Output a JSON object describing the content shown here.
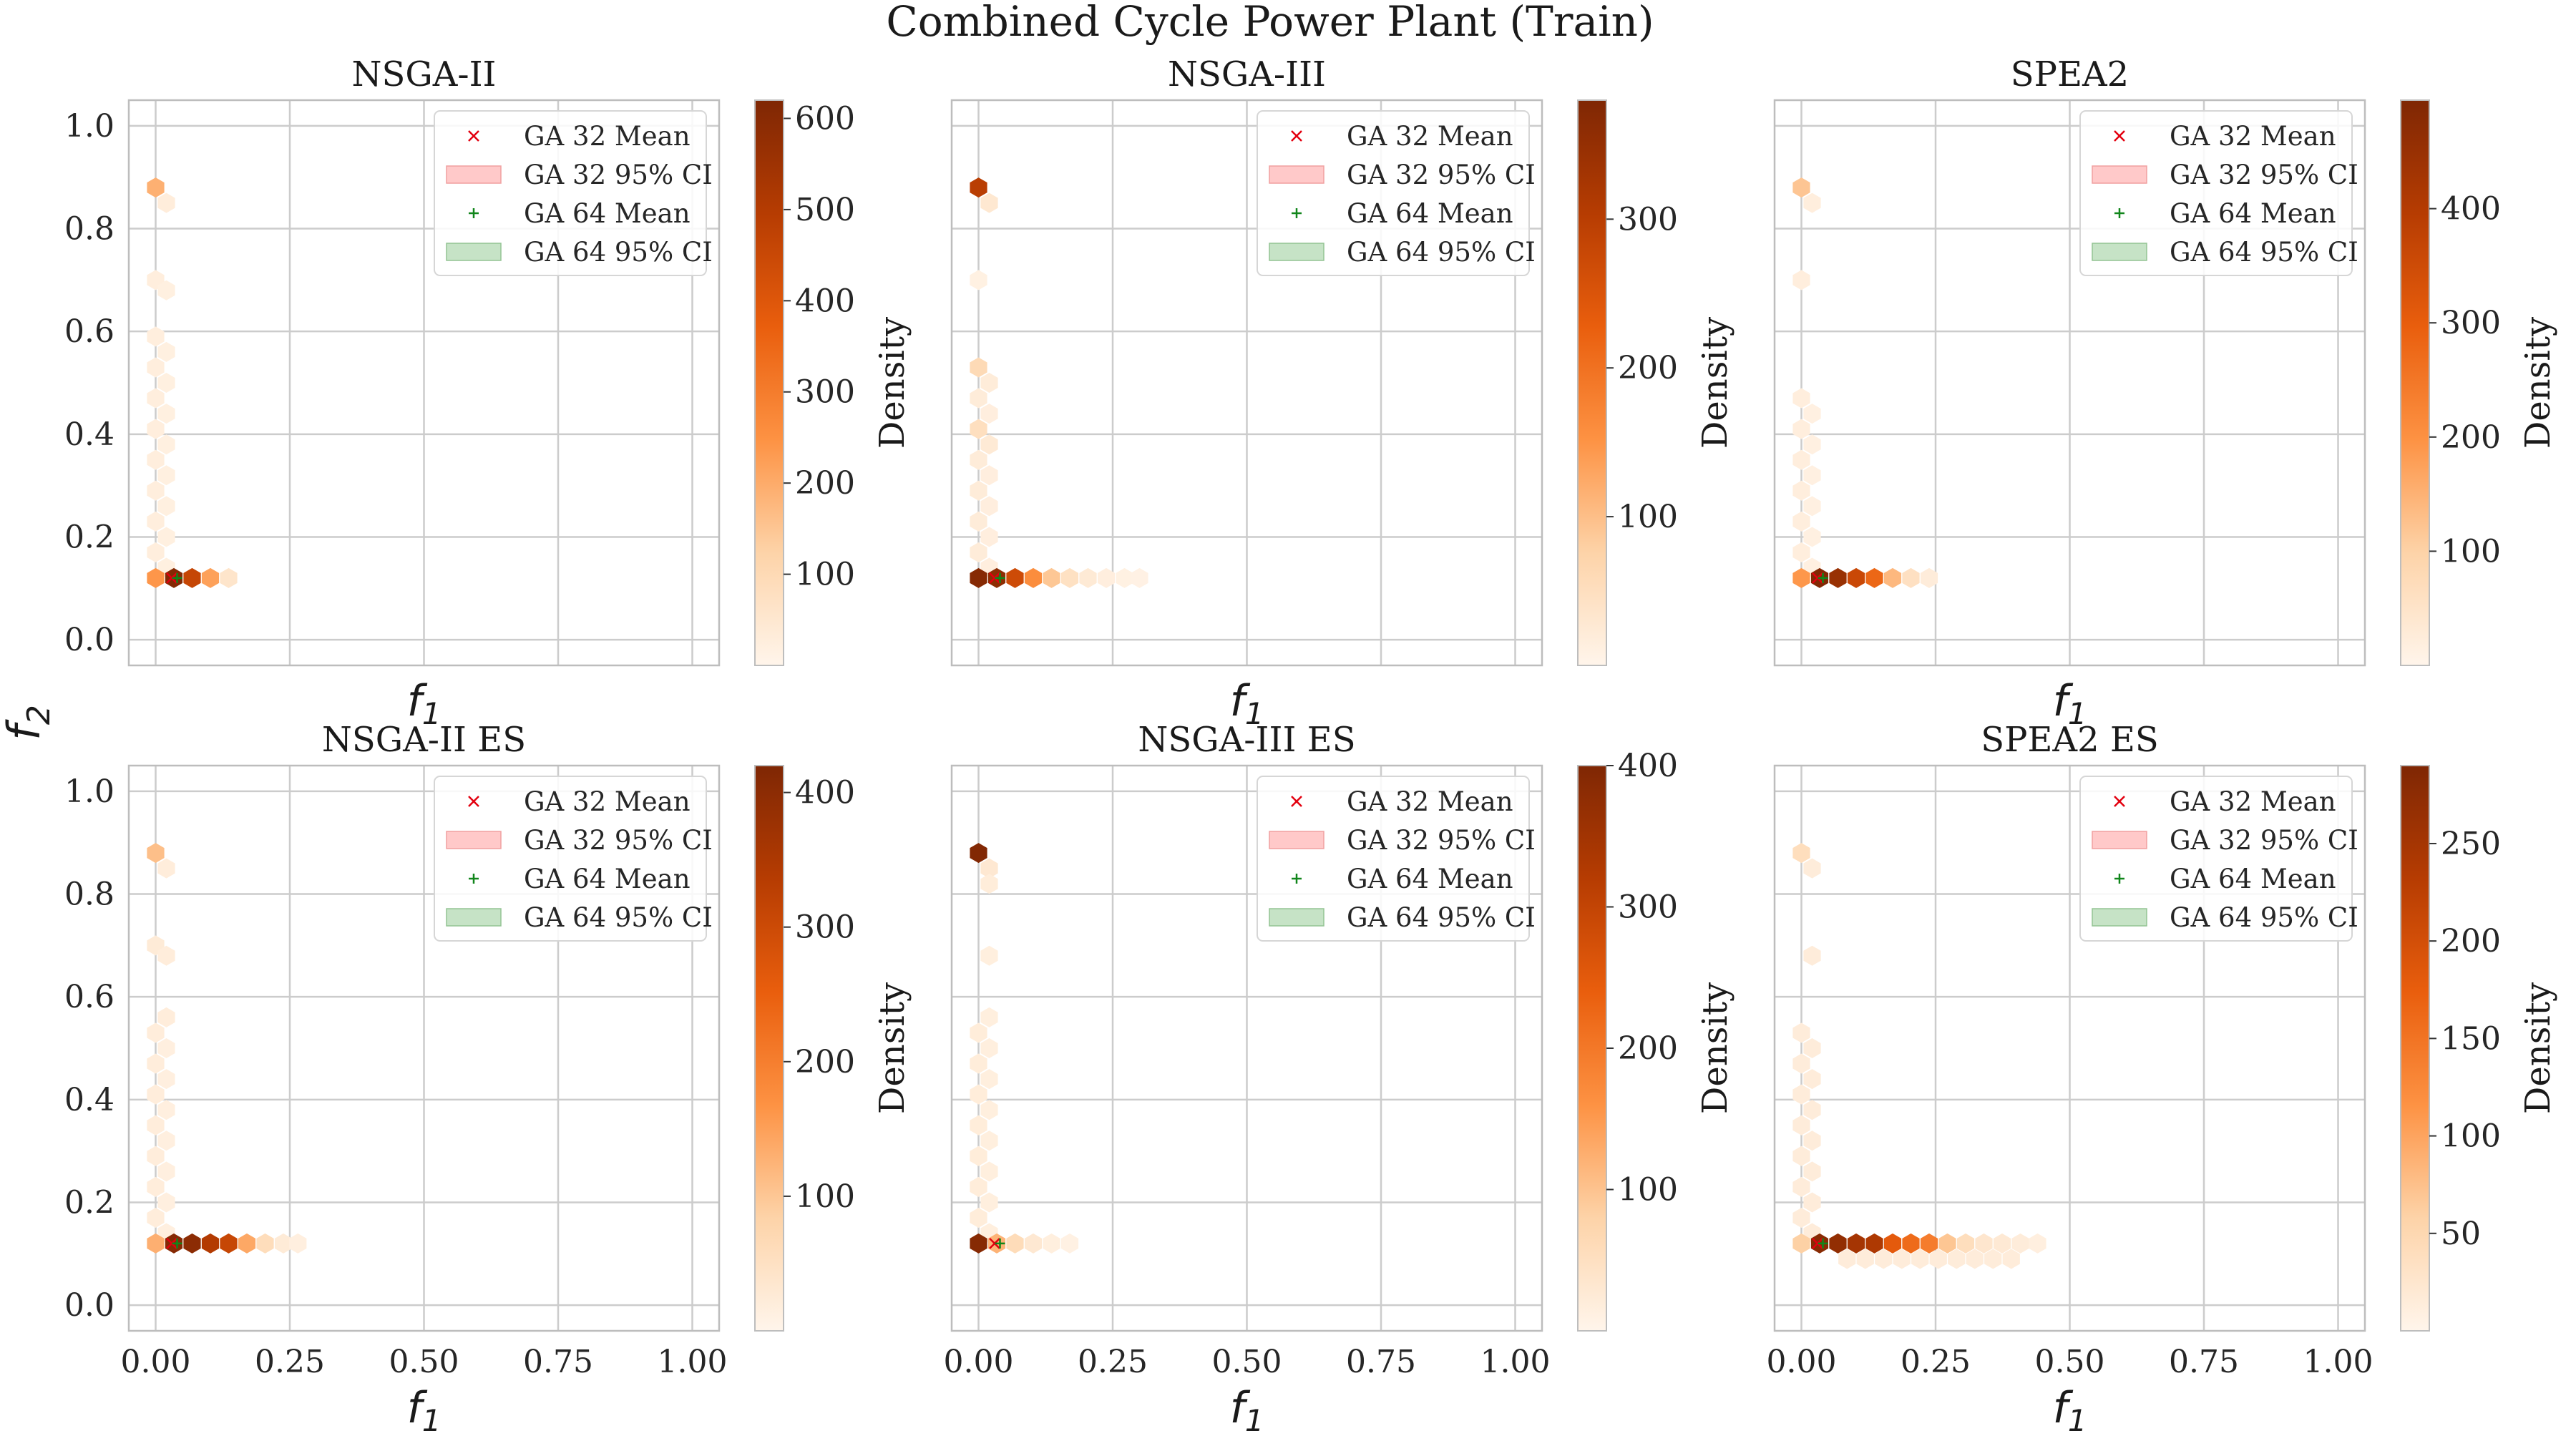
{
  "figure": {
    "title": "Combined Cycle Power Plant (Train)",
    "ylabel_main": "f",
    "ylabel_sub": "2"
  },
  "colors": {
    "gradient": [
      "#fff5eb",
      "#fdd3a8",
      "#fd9243",
      "#e95e0d",
      "#b63c02",
      "#7f2704"
    ],
    "grid": "#cccccc",
    "frame": "#bdbdbd",
    "ga32_mean": "#e3000f",
    "ga32_ci_fill": "#ffc9c9",
    "ga32_ci_edge": "#f0a0a0",
    "ga64_mean": "#11861b",
    "ga64_ci_fill": "#c6e3c6",
    "ga64_ci_edge": "#93c493"
  },
  "legend": {
    "ga32_mean": "GA 32 Mean",
    "ga32_ci": "GA 32 95% CI",
    "ga64_mean": "GA 64 Mean",
    "ga64_ci": "GA 64 95% CI"
  },
  "chart_data": [
    {
      "type": "hexbin",
      "title": "NSGA-II",
      "xlabel": "f",
      "xlabel_sub": "1",
      "xlim": [
        -0.05,
        1.05
      ],
      "ylim": [
        -0.05,
        1.05
      ],
      "xticks": [],
      "yticks": [
        "0.0",
        "0.2",
        "0.4",
        "0.6",
        "0.8",
        "1.0"
      ],
      "colorbar": {
        "label": "Density",
        "min": 0,
        "max": 620,
        "ticks": [
          100,
          200,
          300,
          400,
          500,
          600
        ]
      },
      "hexes": [
        {
          "x": 0.0,
          "y": 0.88,
          "d": 190
        },
        {
          "x": 0.02,
          "y": 0.85,
          "d": 30
        },
        {
          "x": 0.0,
          "y": 0.7,
          "d": 25
        },
        {
          "x": 0.02,
          "y": 0.68,
          "d": 20
        },
        {
          "x": 0.0,
          "y": 0.59,
          "d": 25
        },
        {
          "x": 0.02,
          "y": 0.56,
          "d": 20
        },
        {
          "x": 0.0,
          "y": 0.53,
          "d": 25
        },
        {
          "x": 0.02,
          "y": 0.5,
          "d": 20
        },
        {
          "x": 0.0,
          "y": 0.47,
          "d": 25
        },
        {
          "x": 0.02,
          "y": 0.44,
          "d": 20
        },
        {
          "x": 0.0,
          "y": 0.41,
          "d": 25
        },
        {
          "x": 0.02,
          "y": 0.38,
          "d": 20
        },
        {
          "x": 0.0,
          "y": 0.35,
          "d": 25
        },
        {
          "x": 0.02,
          "y": 0.32,
          "d": 20
        },
        {
          "x": 0.0,
          "y": 0.29,
          "d": 25
        },
        {
          "x": 0.02,
          "y": 0.26,
          "d": 20
        },
        {
          "x": 0.0,
          "y": 0.23,
          "d": 25
        },
        {
          "x": 0.02,
          "y": 0.2,
          "d": 20
        },
        {
          "x": 0.0,
          "y": 0.17,
          "d": 25
        },
        {
          "x": 0.02,
          "y": 0.14,
          "d": 20
        },
        {
          "x": 0.0,
          "y": 0.12,
          "d": 240
        },
        {
          "x": 0.034,
          "y": 0.12,
          "d": 610
        },
        {
          "x": 0.068,
          "y": 0.12,
          "d": 460
        },
        {
          "x": 0.102,
          "y": 0.12,
          "d": 220
        },
        {
          "x": 0.136,
          "y": 0.12,
          "d": 60
        }
      ],
      "ga32_mean": [
        0.03,
        0.12
      ],
      "ga64_mean": [
        0.04,
        0.12
      ]
    },
    {
      "type": "hexbin",
      "title": "NSGA-III",
      "xlabel": "f",
      "xlabel_sub": "1",
      "xlim": [
        -0.05,
        1.05
      ],
      "ylim": [
        -0.05,
        1.05
      ],
      "xticks": [],
      "yticks": [],
      "colorbar": {
        "label": "Density",
        "min": 0,
        "max": 380,
        "ticks": [
          100,
          200,
          300
        ]
      },
      "hexes": [
        {
          "x": 0.0,
          "y": 0.88,
          "d": 300
        },
        {
          "x": 0.02,
          "y": 0.85,
          "d": 30
        },
        {
          "x": 0.0,
          "y": 0.7,
          "d": 10
        },
        {
          "x": 0.0,
          "y": 0.53,
          "d": 60
        },
        {
          "x": 0.02,
          "y": 0.5,
          "d": 20
        },
        {
          "x": 0.0,
          "y": 0.47,
          "d": 20
        },
        {
          "x": 0.02,
          "y": 0.44,
          "d": 15
        },
        {
          "x": 0.0,
          "y": 0.41,
          "d": 50
        },
        {
          "x": 0.02,
          "y": 0.38,
          "d": 25
        },
        {
          "x": 0.0,
          "y": 0.35,
          "d": 20
        },
        {
          "x": 0.02,
          "y": 0.32,
          "d": 15
        },
        {
          "x": 0.0,
          "y": 0.29,
          "d": 20
        },
        {
          "x": 0.02,
          "y": 0.26,
          "d": 15
        },
        {
          "x": 0.0,
          "y": 0.23,
          "d": 20
        },
        {
          "x": 0.02,
          "y": 0.2,
          "d": 15
        },
        {
          "x": 0.0,
          "y": 0.17,
          "d": 20
        },
        {
          "x": 0.02,
          "y": 0.14,
          "d": 15
        },
        {
          "x": 0.0,
          "y": 0.12,
          "d": 370
        },
        {
          "x": 0.034,
          "y": 0.12,
          "d": 360
        },
        {
          "x": 0.068,
          "y": 0.12,
          "d": 270
        },
        {
          "x": 0.102,
          "y": 0.12,
          "d": 160
        },
        {
          "x": 0.136,
          "y": 0.12,
          "d": 90
        },
        {
          "x": 0.17,
          "y": 0.12,
          "d": 45
        },
        {
          "x": 0.204,
          "y": 0.12,
          "d": 25
        },
        {
          "x": 0.238,
          "y": 0.12,
          "d": 15
        },
        {
          "x": 0.272,
          "y": 0.12,
          "d": 10
        },
        {
          "x": 0.3,
          "y": 0.12,
          "d": 8
        }
      ],
      "ga32_mean": [
        0.03,
        0.12
      ],
      "ga64_mean": [
        0.04,
        0.12
      ]
    },
    {
      "type": "hexbin",
      "title": "SPEA2",
      "xlabel": "f",
      "xlabel_sub": "1",
      "xlim": [
        -0.05,
        1.05
      ],
      "ylim": [
        -0.05,
        1.05
      ],
      "xticks": [],
      "yticks": [],
      "colorbar": {
        "label": "Density",
        "min": 0,
        "max": 495,
        "ticks": [
          100,
          200,
          300,
          400
        ]
      },
      "hexes": [
        {
          "x": 0.0,
          "y": 0.88,
          "d": 120
        },
        {
          "x": 0.02,
          "y": 0.85,
          "d": 20
        },
        {
          "x": 0.0,
          "y": 0.7,
          "d": 20
        },
        {
          "x": 0.0,
          "y": 0.47,
          "d": 20
        },
        {
          "x": 0.02,
          "y": 0.44,
          "d": 15
        },
        {
          "x": 0.0,
          "y": 0.41,
          "d": 20
        },
        {
          "x": 0.02,
          "y": 0.38,
          "d": 15
        },
        {
          "x": 0.0,
          "y": 0.35,
          "d": 20
        },
        {
          "x": 0.02,
          "y": 0.32,
          "d": 15
        },
        {
          "x": 0.0,
          "y": 0.29,
          "d": 20
        },
        {
          "x": 0.02,
          "y": 0.26,
          "d": 15
        },
        {
          "x": 0.0,
          "y": 0.23,
          "d": 20
        },
        {
          "x": 0.02,
          "y": 0.2,
          "d": 15
        },
        {
          "x": 0.0,
          "y": 0.17,
          "d": 20
        },
        {
          "x": 0.02,
          "y": 0.14,
          "d": 15
        },
        {
          "x": 0.0,
          "y": 0.12,
          "d": 190
        },
        {
          "x": 0.034,
          "y": 0.12,
          "d": 490
        },
        {
          "x": 0.068,
          "y": 0.12,
          "d": 450
        },
        {
          "x": 0.102,
          "y": 0.12,
          "d": 360
        },
        {
          "x": 0.136,
          "y": 0.12,
          "d": 280
        },
        {
          "x": 0.17,
          "y": 0.12,
          "d": 140
        },
        {
          "x": 0.204,
          "y": 0.12,
          "d": 60
        },
        {
          "x": 0.238,
          "y": 0.12,
          "d": 25
        }
      ],
      "ga32_mean": [
        0.03,
        0.12
      ],
      "ga64_mean": [
        0.04,
        0.12
      ]
    },
    {
      "type": "hexbin",
      "title": "NSGA-II ES",
      "xlabel": "f",
      "xlabel_sub": "1",
      "xlim": [
        -0.05,
        1.05
      ],
      "ylim": [
        -0.05,
        1.05
      ],
      "xticks": [
        "0.00",
        "0.25",
        "0.50",
        "0.75",
        "1.00"
      ],
      "yticks": [
        "0.0",
        "0.2",
        "0.4",
        "0.6",
        "0.8",
        "1.0"
      ],
      "colorbar": {
        "label": "Density",
        "min": 0,
        "max": 420,
        "ticks": [
          100,
          200,
          300,
          400
        ]
      },
      "hexes": [
        {
          "x": 0.0,
          "y": 0.88,
          "d": 110
        },
        {
          "x": 0.02,
          "y": 0.85,
          "d": 20
        },
        {
          "x": 0.0,
          "y": 0.7,
          "d": 25
        },
        {
          "x": 0.02,
          "y": 0.68,
          "d": 20
        },
        {
          "x": 0.0,
          "y": 0.53,
          "d": 20
        },
        {
          "x": 0.02,
          "y": 0.56,
          "d": 20
        },
        {
          "x": 0.0,
          "y": 0.47,
          "d": 20
        },
        {
          "x": 0.02,
          "y": 0.5,
          "d": 15
        },
        {
          "x": 0.0,
          "y": 0.41,
          "d": 20
        },
        {
          "x": 0.02,
          "y": 0.44,
          "d": 15
        },
        {
          "x": 0.0,
          "y": 0.35,
          "d": 20
        },
        {
          "x": 0.02,
          "y": 0.38,
          "d": 15
        },
        {
          "x": 0.0,
          "y": 0.29,
          "d": 20
        },
        {
          "x": 0.02,
          "y": 0.32,
          "d": 15
        },
        {
          "x": 0.0,
          "y": 0.23,
          "d": 20
        },
        {
          "x": 0.02,
          "y": 0.26,
          "d": 15
        },
        {
          "x": 0.0,
          "y": 0.17,
          "d": 20
        },
        {
          "x": 0.02,
          "y": 0.2,
          "d": 15
        },
        {
          "x": 0.02,
          "y": 0.14,
          "d": 15
        },
        {
          "x": 0.0,
          "y": 0.12,
          "d": 130
        },
        {
          "x": 0.034,
          "y": 0.12,
          "d": 410
        },
        {
          "x": 0.068,
          "y": 0.12,
          "d": 400
        },
        {
          "x": 0.102,
          "y": 0.12,
          "d": 340
        },
        {
          "x": 0.136,
          "y": 0.12,
          "d": 310
        },
        {
          "x": 0.17,
          "y": 0.12,
          "d": 140
        },
        {
          "x": 0.204,
          "y": 0.12,
          "d": 60
        },
        {
          "x": 0.238,
          "y": 0.12,
          "d": 25
        },
        {
          "x": 0.265,
          "y": 0.12,
          "d": 15
        }
      ],
      "ga32_mean": [
        0.03,
        0.12
      ],
      "ga64_mean": [
        0.04,
        0.12
      ]
    },
    {
      "type": "hexbin",
      "title": "NSGA-III ES",
      "xlabel": "f",
      "xlabel_sub": "1",
      "xlim": [
        -0.05,
        1.05
      ],
      "ylim": [
        -0.05,
        1.05
      ],
      "xticks": [
        "0.00",
        "0.25",
        "0.50",
        "0.75",
        "1.00"
      ],
      "yticks": [],
      "colorbar": {
        "label": "Density",
        "min": 0,
        "max": 400,
        "ticks": [
          100,
          200,
          300,
          400
        ]
      },
      "hexes": [
        {
          "x": 0.0,
          "y": 0.88,
          "d": 395
        },
        {
          "x": 0.02,
          "y": 0.85,
          "d": 30
        },
        {
          "x": 0.02,
          "y": 0.82,
          "d": 20
        },
        {
          "x": 0.02,
          "y": 0.68,
          "d": 15
        },
        {
          "x": 0.0,
          "y": 0.53,
          "d": 20
        },
        {
          "x": 0.02,
          "y": 0.56,
          "d": 15
        },
        {
          "x": 0.0,
          "y": 0.47,
          "d": 20
        },
        {
          "x": 0.02,
          "y": 0.5,
          "d": 15
        },
        {
          "x": 0.0,
          "y": 0.41,
          "d": 20
        },
        {
          "x": 0.02,
          "y": 0.44,
          "d": 15
        },
        {
          "x": 0.0,
          "y": 0.35,
          "d": 20
        },
        {
          "x": 0.02,
          "y": 0.38,
          "d": 15
        },
        {
          "x": 0.0,
          "y": 0.29,
          "d": 20
        },
        {
          "x": 0.02,
          "y": 0.32,
          "d": 15
        },
        {
          "x": 0.0,
          "y": 0.23,
          "d": 20
        },
        {
          "x": 0.02,
          "y": 0.26,
          "d": 15
        },
        {
          "x": 0.0,
          "y": 0.17,
          "d": 20
        },
        {
          "x": 0.02,
          "y": 0.2,
          "d": 15
        },
        {
          "x": 0.02,
          "y": 0.14,
          "d": 15
        },
        {
          "x": 0.0,
          "y": 0.12,
          "d": 390
        },
        {
          "x": 0.034,
          "y": 0.12,
          "d": 120
        },
        {
          "x": 0.068,
          "y": 0.12,
          "d": 60
        },
        {
          "x": 0.102,
          "y": 0.12,
          "d": 30
        },
        {
          "x": 0.136,
          "y": 0.12,
          "d": 15
        },
        {
          "x": 0.17,
          "y": 0.12,
          "d": 10
        }
      ],
      "ga32_mean": [
        0.03,
        0.12
      ],
      "ga64_mean": [
        0.04,
        0.12
      ]
    },
    {
      "type": "hexbin",
      "title": "SPEA2 ES",
      "xlabel": "f",
      "xlabel_sub": "1",
      "xlim": [
        -0.05,
        1.05
      ],
      "ylim": [
        -0.05,
        1.05
      ],
      "xticks": [
        "0.00",
        "0.25",
        "0.50",
        "0.75",
        "1.00"
      ],
      "yticks": [],
      "colorbar": {
        "label": "Density",
        "min": 0,
        "max": 290,
        "ticks": [
          50,
          100,
          150,
          200,
          250
        ]
      },
      "hexes": [
        {
          "x": 0.0,
          "y": 0.88,
          "d": 40
        },
        {
          "x": 0.02,
          "y": 0.85,
          "d": 15
        },
        {
          "x": 0.02,
          "y": 0.68,
          "d": 15
        },
        {
          "x": 0.0,
          "y": 0.53,
          "d": 15
        },
        {
          "x": 0.02,
          "y": 0.5,
          "d": 15
        },
        {
          "x": 0.0,
          "y": 0.47,
          "d": 15
        },
        {
          "x": 0.02,
          "y": 0.44,
          "d": 15
        },
        {
          "x": 0.0,
          "y": 0.41,
          "d": 15
        },
        {
          "x": 0.02,
          "y": 0.38,
          "d": 15
        },
        {
          "x": 0.0,
          "y": 0.35,
          "d": 15
        },
        {
          "x": 0.02,
          "y": 0.32,
          "d": 15
        },
        {
          "x": 0.0,
          "y": 0.29,
          "d": 15
        },
        {
          "x": 0.02,
          "y": 0.26,
          "d": 15
        },
        {
          "x": 0.0,
          "y": 0.23,
          "d": 15
        },
        {
          "x": 0.02,
          "y": 0.2,
          "d": 15
        },
        {
          "x": 0.0,
          "y": 0.17,
          "d": 15
        },
        {
          "x": 0.02,
          "y": 0.14,
          "d": 15
        },
        {
          "x": 0.0,
          "y": 0.12,
          "d": 60
        },
        {
          "x": 0.034,
          "y": 0.12,
          "d": 280
        },
        {
          "x": 0.068,
          "y": 0.12,
          "d": 270
        },
        {
          "x": 0.102,
          "y": 0.12,
          "d": 250
        },
        {
          "x": 0.136,
          "y": 0.12,
          "d": 240
        },
        {
          "x": 0.17,
          "y": 0.12,
          "d": 180
        },
        {
          "x": 0.204,
          "y": 0.12,
          "d": 160
        },
        {
          "x": 0.238,
          "y": 0.12,
          "d": 140
        },
        {
          "x": 0.272,
          "y": 0.12,
          "d": 70
        },
        {
          "x": 0.306,
          "y": 0.12,
          "d": 40
        },
        {
          "x": 0.34,
          "y": 0.12,
          "d": 25
        },
        {
          "x": 0.374,
          "y": 0.12,
          "d": 20
        },
        {
          "x": 0.408,
          "y": 0.12,
          "d": 15
        },
        {
          "x": 0.44,
          "y": 0.12,
          "d": 10
        },
        {
          "x": 0.085,
          "y": 0.09,
          "d": 15
        },
        {
          "x": 0.119,
          "y": 0.09,
          "d": 15
        },
        {
          "x": 0.153,
          "y": 0.09,
          "d": 15
        },
        {
          "x": 0.187,
          "y": 0.09,
          "d": 15
        },
        {
          "x": 0.221,
          "y": 0.09,
          "d": 15
        },
        {
          "x": 0.255,
          "y": 0.09,
          "d": 15
        },
        {
          "x": 0.289,
          "y": 0.09,
          "d": 15
        },
        {
          "x": 0.323,
          "y": 0.09,
          "d": 15
        },
        {
          "x": 0.357,
          "y": 0.09,
          "d": 15
        },
        {
          "x": 0.391,
          "y": 0.09,
          "d": 15
        }
      ],
      "ga32_mean": [
        0.03,
        0.12
      ],
      "ga64_mean": [
        0.04,
        0.12
      ]
    }
  ]
}
